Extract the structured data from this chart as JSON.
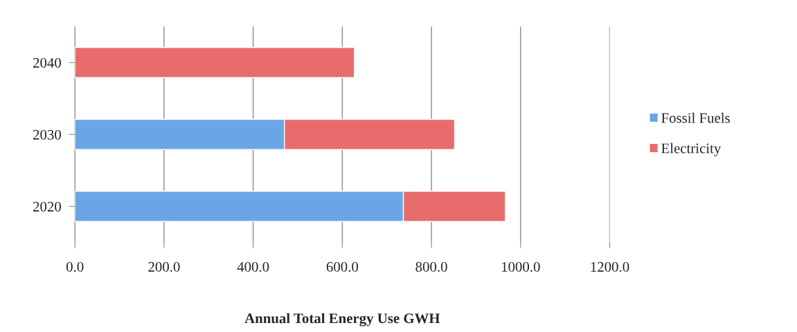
{
  "chart_data": {
    "type": "bar",
    "orientation": "horizontal",
    "stacked": true,
    "xlabel": "Annual Total Energy Use GWH",
    "categories": [
      "2040",
      "2030",
      "2020"
    ],
    "series": [
      {
        "name": "Fossil Fuels",
        "color": "#6aa6e6",
        "values": [
          0,
          470,
          737
        ]
      },
      {
        "name": "Electricity",
        "color": "#e96c6c",
        "values": [
          627,
          382,
          229
        ]
      }
    ],
    "xlim": [
      0,
      1200
    ],
    "xticks": [
      {
        "value": 0,
        "label": "0.0"
      },
      {
        "value": 200,
        "label": "200.0"
      },
      {
        "value": 400,
        "label": "400.0"
      },
      {
        "value": 600,
        "label": "600.0"
      },
      {
        "value": 800,
        "label": "800.0"
      },
      {
        "value": 1000,
        "label": "1000.0"
      },
      {
        "value": 1200,
        "label": "1200.0"
      }
    ],
    "grid": "x",
    "legend": "right"
  }
}
